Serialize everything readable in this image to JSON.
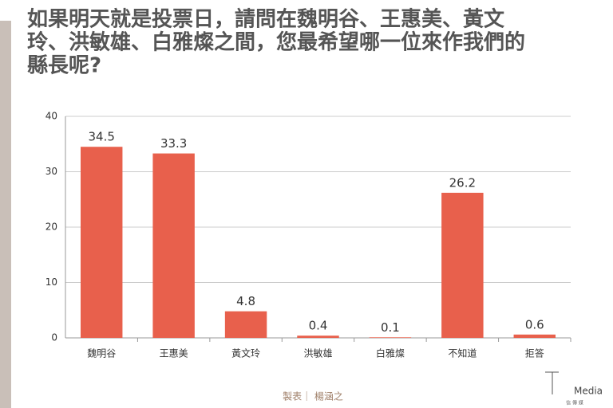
{
  "chart_data": {
    "type": "bar",
    "title": [
      "如果明天就是投票日，請問在魏明谷、王惠美、黃文",
      "玲、洪敏雄、白雅燦之間，您最希望哪一位來作我們的",
      "縣長呢?"
    ],
    "categories": [
      "魏明谷",
      "王惠美",
      "黃文玲",
      "洪敏雄",
      "白雅燦",
      "不知道",
      "拒答"
    ],
    "values": [
      34.5,
      33.3,
      4.8,
      0.4,
      0.1,
      26.2,
      0.6
    ],
    "color": "#e8604c",
    "ylim": [
      0,
      40
    ],
    "yticks": [
      0,
      10,
      20,
      30,
      40
    ],
    "grid": true,
    "footer": "製表｜ 楊涵之",
    "logo": "Media",
    "logo_sub": "信 傳 媒"
  }
}
